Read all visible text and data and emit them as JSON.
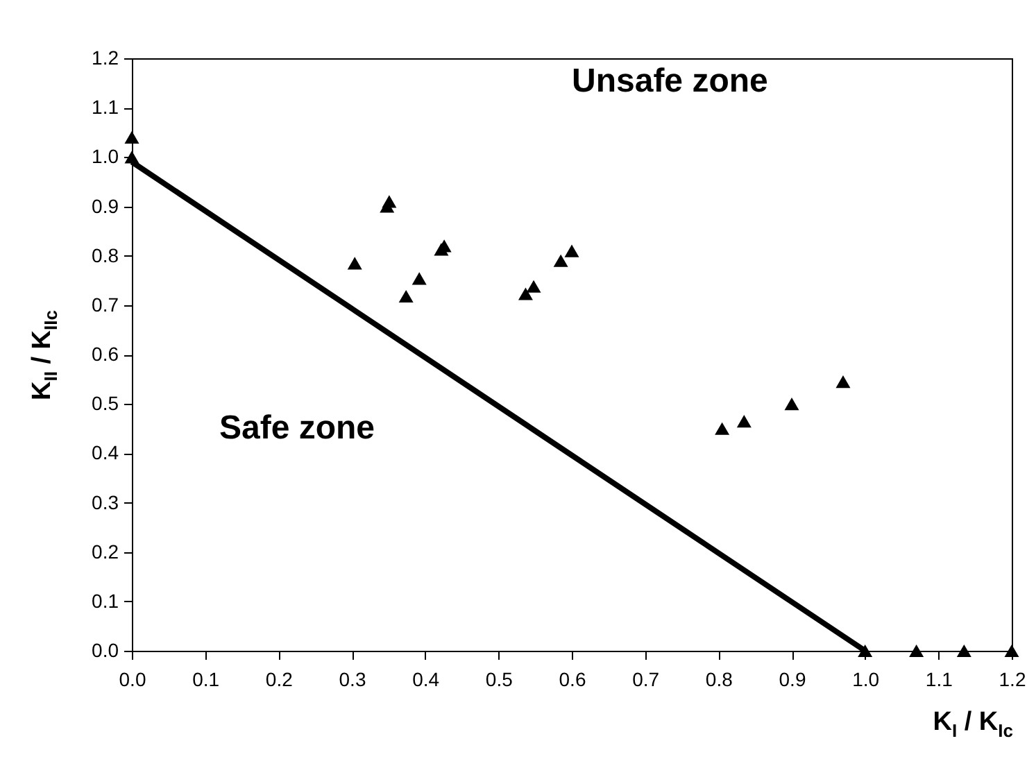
{
  "chart_data": {
    "type": "scatter",
    "xlabel": "K$_{I}$ / K$_{Ic}$",
    "ylabel": "K$_{II}$ / K$_{IIc}$",
    "annotations": [
      "Unsafe zone",
      "Safe zone"
    ],
    "series": [
      {
        "type": "scatter",
        "color": "#000000",
        "marker": "triangle",
        "x": [
          0,
          0,
          0.304,
          0.348,
          0.351,
          0.374,
          0.392,
          0.422,
          0.426,
          0.537,
          0.548,
          0.585,
          0.6,
          0.805,
          0.835,
          0.9,
          0.97,
          1.0,
          1.07,
          1.135,
          1.2
        ],
        "values": [
          1.04,
          1.0,
          0.785,
          0.9,
          0.91,
          0.718,
          0.754,
          0.813,
          0.82,
          0.723,
          0.738,
          0.79,
          0.81,
          0.45,
          0.465,
          0.5,
          0.545,
          0,
          0,
          0,
          0
        ]
      },
      {
        "type": "line",
        "color": "#000000",
        "marker": "none",
        "line_style": "solid",
        "x": [
          0,
          1
        ],
        "values": [
          0.99,
          0
        ]
      }
    ],
    "xlim": [
      0,
      1.2
    ],
    "ylim": [
      0,
      1.2
    ],
    "xticks": [
      {
        "value": 0,
        "label": "0.0"
      },
      {
        "value": 0.1,
        "label": "0.1"
      },
      {
        "value": 0.2,
        "label": "0.2"
      },
      {
        "value": 0.3,
        "label": "0.3"
      },
      {
        "value": 0.4,
        "label": "0.4"
      },
      {
        "value": 0.5,
        "label": "0.5"
      },
      {
        "value": 0.6,
        "label": "0.6"
      },
      {
        "value": 0.7,
        "label": "0.7"
      },
      {
        "value": 0.8,
        "label": "0.8"
      },
      {
        "value": 0.9,
        "label": "0.9"
      },
      {
        "value": 1.0,
        "label": "1.0"
      },
      {
        "value": 1.1,
        "label": "1.1"
      },
      {
        "value": 1.2,
        "label": "1.2"
      }
    ],
    "yticks": [
      {
        "value": 0,
        "label": "0.0"
      },
      {
        "value": 0.1,
        "label": "0.1"
      },
      {
        "value": 0.2,
        "label": "0.2"
      },
      {
        "value": 0.3,
        "label": "0.3"
      },
      {
        "value": 0.4,
        "label": "0.4"
      },
      {
        "value": 0.5,
        "label": "0.5"
      },
      {
        "value": 0.6,
        "label": "0.6"
      },
      {
        "value": 0.7,
        "label": "0.7"
      },
      {
        "value": 0.8,
        "label": "0.8"
      },
      {
        "value": 0.9,
        "label": "0.9"
      },
      {
        "value": 1.0,
        "label": "1.0"
      },
      {
        "value": 1.1,
        "label": "1.1"
      },
      {
        "value": 1.2,
        "label": "1.2"
      }
    ],
    "grid": false,
    "legend": false
  }
}
